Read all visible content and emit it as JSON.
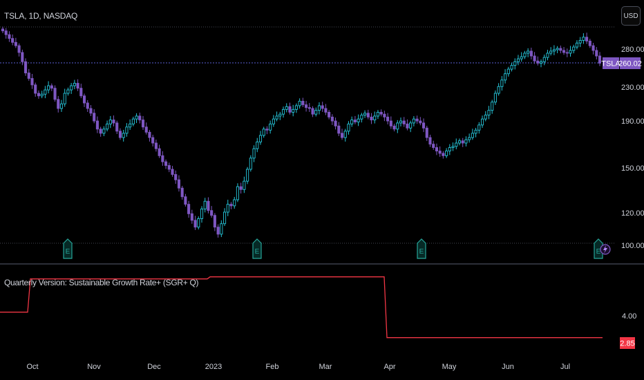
{
  "header": {
    "symbol_title": "TSLA, 1D, NASDAQ",
    "currency_button": "USD"
  },
  "indicator": {
    "title": "Quarterly Version: Sustainable Growth Rate+ (SGR+ Q)"
  },
  "colors": {
    "background": "#000000",
    "up_candle": "#26c6da",
    "down_candle": "#7e57c2",
    "price_line": "#5a5fd6",
    "indicator_line": "#f23645",
    "axis_text": "#d1d4dc",
    "earnings_marker": "#26a69a"
  },
  "chart_data": [
    {
      "type": "candlestick",
      "title": "TSLA, 1D, NASDAQ",
      "y_scale": "log",
      "y_ticks": [
        "280.00",
        "230.00",
        "190.00",
        "150.00",
        "120.00",
        "100.00"
      ],
      "x_ticks": [
        "Oct",
        "Nov",
        "Dec",
        "2023",
        "Feb",
        "Mar",
        "Apr",
        "May",
        "Jun",
        "Jul"
      ],
      "last_price": {
        "label": "TSLA",
        "value": "260.02"
      },
      "earnings_markers": [
        "E",
        "E",
        "E",
        "E"
      ],
      "close_series": [
        308,
        302,
        296,
        290,
        285,
        275,
        262,
        247,
        240,
        232,
        222,
        219,
        221,
        226,
        231,
        228,
        215,
        205,
        210,
        222,
        226,
        231,
        234,
        228,
        219,
        211,
        205,
        200,
        192,
        184,
        180,
        184,
        189,
        193,
        190,
        182,
        176,
        180,
        186,
        189,
        194,
        197,
        193,
        186,
        181,
        176,
        171,
        166,
        160,
        155,
        152,
        149,
        145,
        141,
        135,
        129,
        124,
        118,
        114,
        110,
        115,
        121,
        126,
        120,
        117,
        110,
        106,
        112,
        119,
        124,
        123,
        127,
        136,
        134,
        140,
        149,
        158,
        166,
        172,
        178,
        184,
        183,
        189,
        194,
        197,
        199,
        204,
        207,
        201,
        204,
        208,
        213,
        209,
        206,
        205,
        199,
        203,
        208,
        205,
        201,
        196,
        192,
        187,
        180,
        176,
        182,
        189,
        193,
        191,
        194,
        198,
        200,
        196,
        193,
        197,
        201,
        199,
        196,
        192,
        187,
        184,
        190,
        192,
        189,
        185,
        190,
        194,
        192,
        190,
        185,
        176,
        170,
        167,
        164,
        162,
        160,
        164,
        167,
        168,
        171,
        173,
        171,
        174,
        176,
        180,
        183,
        188,
        194,
        198,
        203,
        212,
        222,
        230,
        238,
        246,
        252,
        257,
        262,
        266,
        269,
        274,
        277,
        270,
        263,
        260,
        262,
        268,
        274,
        277,
        279,
        281,
        278,
        275,
        274,
        278,
        283,
        289,
        293,
        298,
        292,
        285,
        278,
        270,
        260
      ]
    },
    {
      "type": "line",
      "title": "Quarterly Version: Sustainable Growth Rate+ (SGR+ Q)",
      "y_ticks": [
        "4.00"
      ],
      "last_value": "2.85",
      "points": [
        [
          0,
          4.19
        ],
        [
          40,
          4.19
        ],
        [
          44,
          5.93
        ],
        [
          300,
          5.93
        ],
        [
          304,
          6.04
        ],
        [
          556,
          6.04
        ],
        [
          560,
          2.85
        ],
        [
          872,
          2.85
        ]
      ]
    }
  ]
}
